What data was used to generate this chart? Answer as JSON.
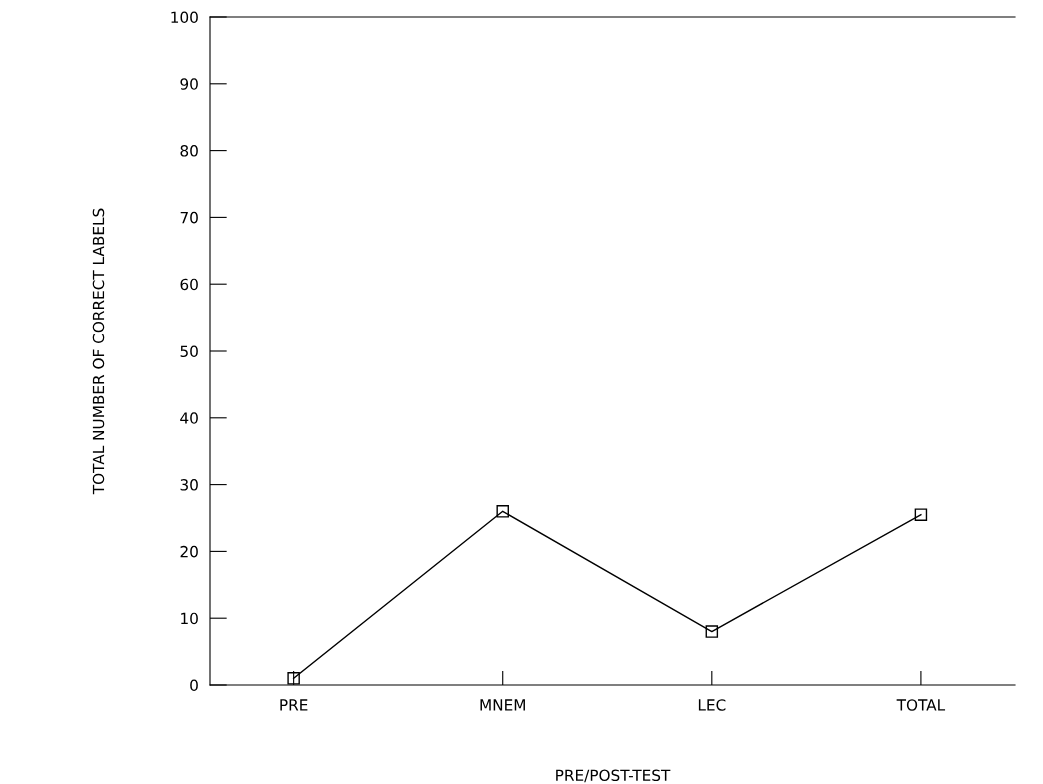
{
  "chart_data": {
    "type": "line",
    "xlabel": "PRE/POST-TEST",
    "ylabel": "TOTAL NUMBER OF CORRECT LABELS",
    "categories": [
      "PRE",
      "MNEM",
      "LEC",
      "TOTAL"
    ],
    "series": [
      {
        "color": "#000000",
        "values": [
          1,
          26,
          8,
          25.5
        ]
      }
    ],
    "ylim": [
      0,
      100
    ],
    "yticks": [
      0,
      10,
      20,
      30,
      40,
      50,
      60,
      70,
      80,
      90,
      100
    ],
    "marker": "square",
    "line_style": "solid",
    "grid": false,
    "legend": false
  }
}
